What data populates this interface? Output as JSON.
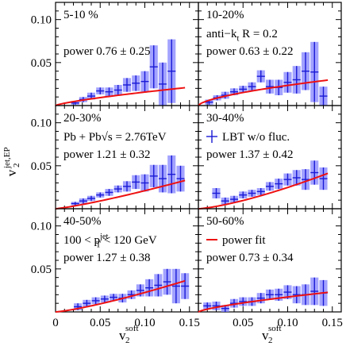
{
  "chart_data": {
    "type": "scatter",
    "xlabel": "v",
    "xlabel_sup": "soft",
    "xlabel_sub": "2",
    "ylabel": "v",
    "ylabel_sup": "jet,EP",
    "ylabel_sub": "2",
    "xlim": [
      0,
      0.16
    ],
    "ylim": [
      0,
      0.12
    ],
    "x_ticks": [
      0,
      0.05,
      0.1,
      0.15
    ],
    "x_tick_labels": [
      "0",
      "0.05",
      "0.10",
      "0.15"
    ],
    "y_ticks": [
      0.05,
      0.1
    ],
    "y_tick_labels": [
      "0.05",
      "0.10"
    ],
    "grid": false,
    "series_names": [
      "LBT w/o fluc.",
      "power fit"
    ],
    "panels": [
      {
        "label": "5-10 %",
        "power": "power 0.76 ± 0.25",
        "fit": {
          "a": 0.09,
          "b": 0.76
        },
        "points": [
          {
            "x": 0.022,
            "y": 0.003,
            "err": 0.002
          },
          {
            "x": 0.031,
            "y": 0.007,
            "err": 0.003
          },
          {
            "x": 0.04,
            "y": 0.011,
            "err": 0.004
          },
          {
            "x": 0.05,
            "y": 0.017,
            "err": 0.004
          },
          {
            "x": 0.06,
            "y": 0.016,
            "err": 0.005
          },
          {
            "x": 0.07,
            "y": 0.018,
            "err": 0.006
          },
          {
            "x": 0.08,
            "y": 0.024,
            "err": 0.008
          },
          {
            "x": 0.09,
            "y": 0.026,
            "err": 0.009
          },
          {
            "x": 0.1,
            "y": 0.028,
            "err": 0.012
          },
          {
            "x": 0.11,
            "y": 0.045,
            "err": 0.025
          },
          {
            "x": 0.12,
            "y": 0.025,
            "err": 0.025
          },
          {
            "x": 0.13,
            "y": 0.04,
            "err": 0.037
          }
        ]
      },
      {
        "label": "10-20%",
        "extra": "anti−k_t R = 0.2",
        "power": "power 0.63 ± 0.22",
        "fit": {
          "a": 0.1,
          "b": 0.63
        },
        "points": [
          {
            "x": 0.012,
            "y": 0.004,
            "err": 0.003
          },
          {
            "x": 0.021,
            "y": 0.009,
            "err": 0.003
          },
          {
            "x": 0.03,
            "y": 0.012,
            "err": 0.004
          },
          {
            "x": 0.04,
            "y": 0.016,
            "err": 0.004
          },
          {
            "x": 0.05,
            "y": 0.019,
            "err": 0.004
          },
          {
            "x": 0.06,
            "y": 0.022,
            "err": 0.005
          },
          {
            "x": 0.07,
            "y": 0.034,
            "err": 0.007
          },
          {
            "x": 0.08,
            "y": 0.022,
            "err": 0.008
          },
          {
            "x": 0.09,
            "y": 0.021,
            "err": 0.009
          },
          {
            "x": 0.1,
            "y": 0.027,
            "err": 0.012
          },
          {
            "x": 0.11,
            "y": 0.03,
            "err": 0.016
          },
          {
            "x": 0.12,
            "y": 0.04,
            "err": 0.022
          },
          {
            "x": 0.13,
            "y": 0.039,
            "err": 0.035
          },
          {
            "x": 0.14,
            "y": 0.011,
            "err": 0.011
          }
        ]
      },
      {
        "label": "20-30%",
        "extra": "Pb + Pb√s = 2.76TeV",
        "power": "power 1.21 ± 0.32",
        "fit": {
          "a": 0.34,
          "b": 1.21
        },
        "points": [
          {
            "x": 0.022,
            "y": 0.006,
            "err": 0.002
          },
          {
            "x": 0.031,
            "y": 0.009,
            "err": 0.003
          },
          {
            "x": 0.04,
            "y": 0.012,
            "err": 0.003
          },
          {
            "x": 0.05,
            "y": 0.016,
            "err": 0.003
          },
          {
            "x": 0.06,
            "y": 0.019,
            "err": 0.004
          },
          {
            "x": 0.07,
            "y": 0.023,
            "err": 0.004
          },
          {
            "x": 0.08,
            "y": 0.026,
            "err": 0.006
          },
          {
            "x": 0.09,
            "y": 0.031,
            "err": 0.008
          },
          {
            "x": 0.1,
            "y": 0.03,
            "err": 0.01
          },
          {
            "x": 0.11,
            "y": 0.038,
            "err": 0.013
          },
          {
            "x": 0.12,
            "y": 0.035,
            "err": 0.016
          },
          {
            "x": 0.13,
            "y": 0.04,
            "err": 0.022
          },
          {
            "x": 0.14,
            "y": 0.035,
            "err": 0.015
          }
        ]
      },
      {
        "label": "30-40%",
        "legend": "LBT w/o fluc.",
        "power": "power 1.37 ± 0.42",
        "fit": {
          "a": 0.58,
          "b": 1.37
        },
        "points": [
          {
            "x": 0.02,
            "y": 0.018,
            "err": 0.006
          },
          {
            "x": 0.03,
            "y": 0.009,
            "err": 0.004
          },
          {
            "x": 0.04,
            "y": 0.011,
            "err": 0.004
          },
          {
            "x": 0.05,
            "y": 0.016,
            "err": 0.004
          },
          {
            "x": 0.06,
            "y": 0.018,
            "err": 0.004
          },
          {
            "x": 0.07,
            "y": 0.02,
            "err": 0.004
          },
          {
            "x": 0.08,
            "y": 0.026,
            "err": 0.005
          },
          {
            "x": 0.09,
            "y": 0.029,
            "err": 0.006
          },
          {
            "x": 0.1,
            "y": 0.034,
            "err": 0.007
          },
          {
            "x": 0.11,
            "y": 0.036,
            "err": 0.009
          },
          {
            "x": 0.12,
            "y": 0.034,
            "err": 0.012
          },
          {
            "x": 0.13,
            "y": 0.042,
            "err": 0.014
          },
          {
            "x": 0.14,
            "y": 0.035,
            "err": 0.013
          }
        ]
      },
      {
        "label": "40-50%",
        "extra": "100 < p_T^jet < 120 GeV",
        "power": "power 1.27 ± 0.38",
        "fit": {
          "a": 0.42,
          "b": 1.27
        },
        "points": [
          {
            "x": 0.025,
            "y": 0.006,
            "err": 0.004
          },
          {
            "x": 0.035,
            "y": 0.01,
            "err": 0.004
          },
          {
            "x": 0.045,
            "y": 0.013,
            "err": 0.004
          },
          {
            "x": 0.055,
            "y": 0.015,
            "err": 0.004
          },
          {
            "x": 0.065,
            "y": 0.017,
            "err": 0.004
          },
          {
            "x": 0.075,
            "y": 0.016,
            "err": 0.005
          },
          {
            "x": 0.085,
            "y": 0.02,
            "err": 0.005
          },
          {
            "x": 0.095,
            "y": 0.025,
            "err": 0.007
          },
          {
            "x": 0.105,
            "y": 0.028,
            "err": 0.01
          },
          {
            "x": 0.115,
            "y": 0.031,
            "err": 0.013
          },
          {
            "x": 0.125,
            "y": 0.035,
            "err": 0.015
          },
          {
            "x": 0.135,
            "y": 0.03,
            "err": 0.02
          },
          {
            "x": 0.145,
            "y": 0.03,
            "err": 0.015
          }
        ]
      },
      {
        "label": "50-60%",
        "legend": "power fit",
        "power": "power 0.73 ± 0.34",
        "fit": {
          "a": 0.093,
          "b": 0.73
        },
        "points": [
          {
            "x": 0.01,
            "y": 0.007,
            "err": 0.004
          },
          {
            "x": 0.02,
            "y": 0.007,
            "err": 0.005
          },
          {
            "x": 0.03,
            "y": 0.004,
            "err": 0.004
          },
          {
            "x": 0.04,
            "y": 0.01,
            "err": 0.005
          },
          {
            "x": 0.05,
            "y": 0.012,
            "err": 0.005
          },
          {
            "x": 0.06,
            "y": 0.012,
            "err": 0.005
          },
          {
            "x": 0.07,
            "y": 0.016,
            "err": 0.006
          },
          {
            "x": 0.08,
            "y": 0.02,
            "err": 0.006
          },
          {
            "x": 0.09,
            "y": 0.02,
            "err": 0.007
          },
          {
            "x": 0.1,
            "y": 0.023,
            "err": 0.008
          },
          {
            "x": 0.11,
            "y": 0.02,
            "err": 0.01
          },
          {
            "x": 0.12,
            "y": 0.02,
            "err": 0.012
          },
          {
            "x": 0.13,
            "y": 0.024,
            "err": 0.016
          },
          {
            "x": 0.14,
            "y": 0.022,
            "err": 0.015
          }
        ]
      }
    ]
  },
  "colors": {
    "points": "#1a1ad6",
    "error_box": "#7b7bff",
    "fit": "#ee1111"
  }
}
